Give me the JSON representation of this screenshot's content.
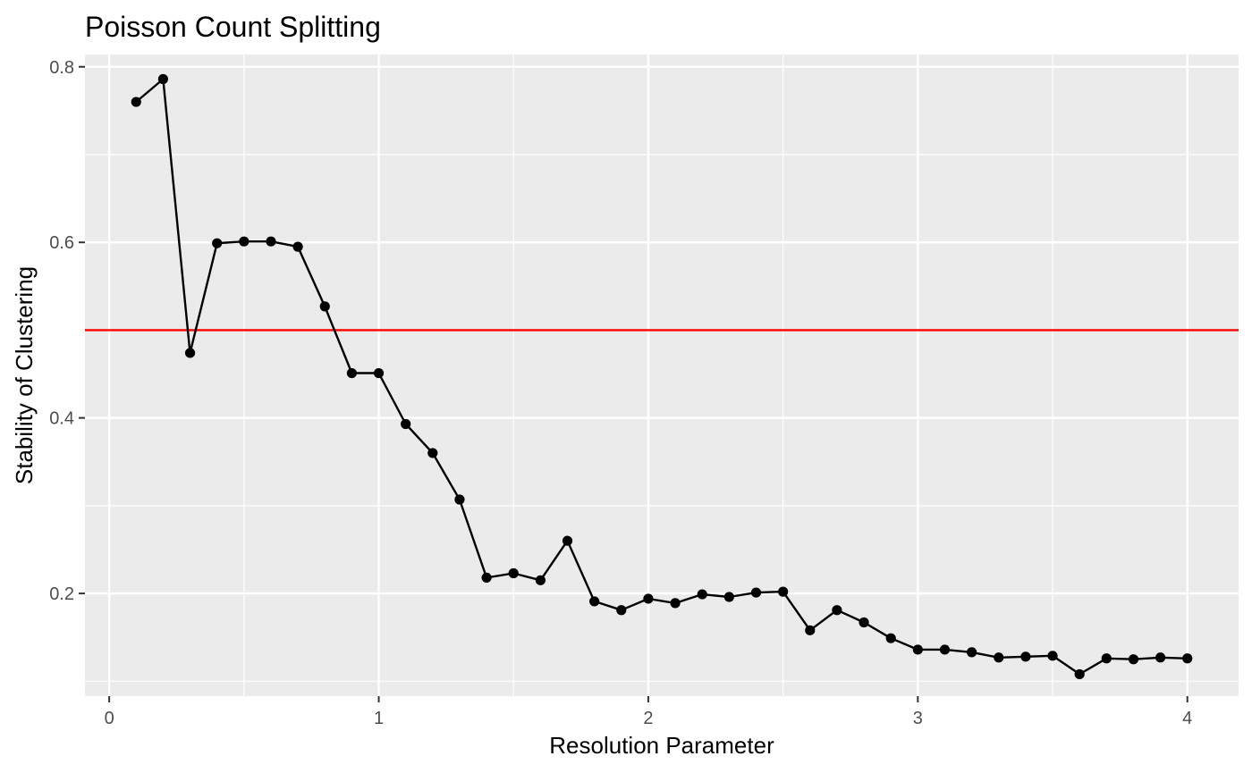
{
  "chart_data": {
    "type": "line",
    "title": "Poisson Count Splitting",
    "xlabel": "Resolution Parameter",
    "ylabel": "Stability of Clustering",
    "xlim": [
      -0.09,
      4.19
    ],
    "ylim": [
      0.083,
      0.814
    ],
    "x_ticks": [
      0,
      1,
      2,
      3,
      4
    ],
    "x_tick_labels": [
      "0",
      "1",
      "2",
      "3",
      "4"
    ],
    "x_minor_ticks": [
      0.5,
      1.5,
      2.5,
      3.5
    ],
    "y_ticks": [
      0.2,
      0.4,
      0.6,
      0.8
    ],
    "y_tick_labels": [
      "0.2",
      "0.4",
      "0.6",
      "0.8"
    ],
    "y_minor_ticks": [
      0.1,
      0.3,
      0.5,
      0.7
    ],
    "grid": true,
    "panel_background": "#ebebeb",
    "line_color": "#000000",
    "hline": {
      "y": 0.5,
      "color": "#ff0000"
    },
    "series": [
      {
        "x": [
          0.1,
          0.2,
          0.3,
          0.4,
          0.5,
          0.6,
          0.7,
          0.8,
          0.9,
          1.0,
          1.1,
          1.2,
          1.3,
          1.4,
          1.5,
          1.6,
          1.7,
          1.8,
          1.9,
          2.0,
          2.1,
          2.2,
          2.3,
          2.4,
          2.5,
          2.6,
          2.7,
          2.8,
          2.9,
          3.0,
          3.1,
          3.2,
          3.3,
          3.4,
          3.5,
          3.6,
          3.7,
          3.8,
          3.9,
          4.0
        ],
        "values": [
          0.76,
          0.786,
          0.474,
          0.599,
          0.601,
          0.601,
          0.595,
          0.527,
          0.451,
          0.451,
          0.393,
          0.36,
          0.307,
          0.218,
          0.223,
          0.215,
          0.26,
          0.191,
          0.181,
          0.194,
          0.189,
          0.199,
          0.196,
          0.201,
          0.202,
          0.158,
          0.181,
          0.167,
          0.149,
          0.136,
          0.136,
          0.133,
          0.127,
          0.128,
          0.129,
          0.108,
          0.126,
          0.125,
          0.127,
          0.126
        ]
      }
    ]
  }
}
